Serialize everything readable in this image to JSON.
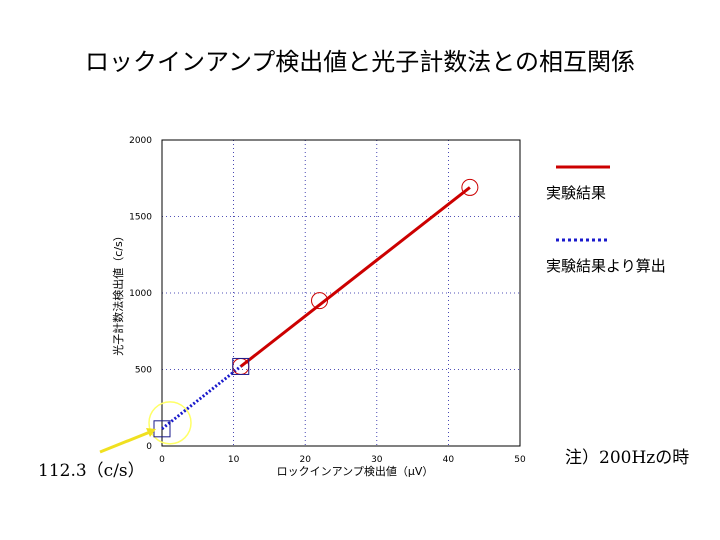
{
  "slide": {
    "title": "ロックインアンプ検出値と光子計数法との相互関係",
    "note": "注）200Hzの時",
    "callout": "112.3（c/s）"
  },
  "legend": [
    {
      "label": "実験結果",
      "style": "solid",
      "color": "#cc0000"
    },
    {
      "label": "実験結果より算出",
      "style": "dotted",
      "color": "#1a1acc"
    }
  ],
  "chart_data": {
    "type": "line",
    "xlabel": "ロックインアンプ検出値（μV）",
    "ylabel": "光子計数法検出値（c/s）",
    "xlim": [
      0,
      50
    ],
    "ylim": [
      0,
      2000
    ],
    "xticks": [
      0,
      10,
      20,
      30,
      40,
      50
    ],
    "yticks": [
      0,
      500,
      1000,
      1500,
      2000
    ],
    "grid": true,
    "series": [
      {
        "name": "実験結果",
        "style": "solid",
        "color": "#cc0000",
        "x": [
          11,
          43
        ],
        "y": [
          520,
          1690
        ]
      },
      {
        "name": "実験結果より算出",
        "style": "dotted",
        "color": "#1a1acc",
        "x": [
          0,
          11
        ],
        "y": [
          112.3,
          520
        ]
      }
    ],
    "markers": [
      {
        "shape": "circle",
        "color": "#cc0000",
        "x": 11,
        "y": 520
      },
      {
        "shape": "circle",
        "color": "#cc0000",
        "x": 22,
        "y": 950
      },
      {
        "shape": "circle",
        "color": "#cc0000",
        "x": 43,
        "y": 1690
      },
      {
        "shape": "square",
        "color": "#1a1a8c",
        "x": 11,
        "y": 520
      },
      {
        "shape": "square",
        "color": "#1a1a8c",
        "x": 0,
        "y": 112.3
      }
    ],
    "highlight": {
      "x": 0,
      "y": 112.3,
      "color": "#ffff66"
    }
  }
}
